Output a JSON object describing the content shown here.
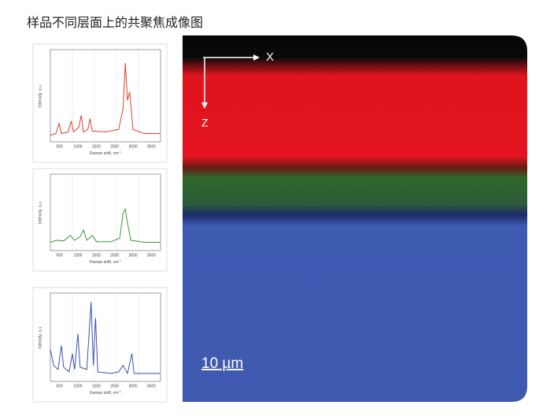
{
  "title": "样品不同层面上的共聚焦成像图",
  "spectra": [
    {
      "y_label": "Intensity, a.u.",
      "x_label": "Raman shift, cm",
      "x_label_sup": "-1",
      "x_ticks": [
        "500",
        "1000",
        "1500",
        "2500",
        "3000",
        "3500"
      ]
    },
    {
      "y_label": "Intensity, a.u.",
      "x_label": "Raman shift, cm",
      "x_label_sup": "-1",
      "x_ticks": [
        "500",
        "1000",
        "1500",
        "2500",
        "3000",
        "3500"
      ]
    },
    {
      "y_label": "Intensity, a.u.",
      "x_label": "Raman shift, cm",
      "x_label_sup": "-1",
      "x_ticks": [
        "500",
        "1000",
        "1500",
        "2500",
        "3000",
        "3500"
      ]
    }
  ],
  "image": {
    "x_axis": "X",
    "z_axis": "Z",
    "scale_bar": "10 µm"
  }
}
